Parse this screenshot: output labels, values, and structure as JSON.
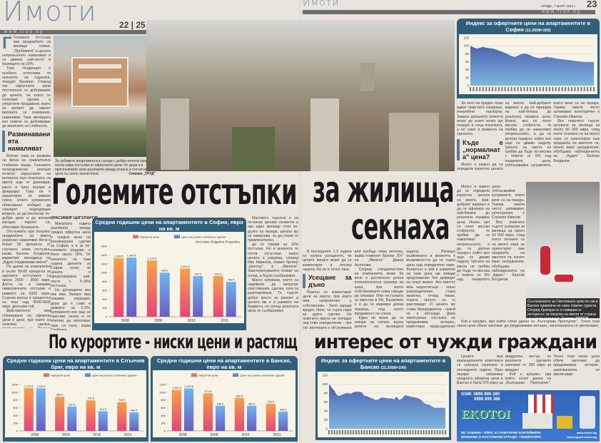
{
  "left_page": {
    "logo": "Имоти",
    "page_numbers": "22 | 25",
    "url": "www.trud.bg",
    "lead_text": [
      "Големите отстъпки при продажбите на жилища секват. „Пробивите\" в цената непрекъснато намаляват и се движат най-често в границите на 10%.",
      "Тази тенденция е особено отчетлива от началото на годината, твърдят брокери. Според тях офертните цени постепенно се доближават до цените, на които се сключват сделки, а упоритите продавачи, които не желаят да свалят високите си очаквания, намаляват. Така жилищата все повече се доближават до реалните си стойности."
    ],
    "subhead_1": "Разминаванията намаляват",
    "text_1": [
      "Всичко това се развива на фона на сравнително стабилен пазар. Големите посреднически агенции отчитат нарастване на интереса към покупката на имоти още от декември, както и през януари и февруари. Това не е характерно за зимния сезон, когато купувачите обикновено избират да спазарят подходящия момент, за да постигнат по-добри цени и да вложат изгодно парите си, обясняват брокерите.",
      "Отстъпките при покупко-продажбите на имоти сериозно намаляват. Вече в близо 30 процента от случаите няма отстъпка, казва Калоян Богданов, маркетинг мениджър на „Адрес Недвижими имоти\".",
      "По данни на компанията в около 50-60 процента от сделките отстъпките са около 2000 - 3000 евро. Доста са и направо символичните отстъпки в рамките на 1000 евро. Съвсем малък е процентът на тези над 4000-5000 евро, допълва той.",
      "Действително има сближаване на офертни цени и цени, при които се сключва сделка, потвърждава и Полина Стойкова, оперативен директор на „Българиан Пропъртис\"."
    ],
    "photo_caption": "За хубавите апартаменти в сгради с добра околна среда почти няма отстъпки от офертните цени. Но дори и в прескъпените зони разликите между искана и постигната цена са силно значителни.",
    "photo_credit": "Снимки „ТРУД\"",
    "byline": "КРАСИМИР ЦИГУЛАРОВ",
    "text_2": [
      "Миналата година разликата между средна офертна цена и средна цена на реализирани сделки за София, а и за по-големите градове, е било около 15%. От началото на тази година данните за София сочат, че цената е предоговаряна най-често с 5-10% отстъпка.",
      "Но договаряне все пак има. Винаги има някаква корекция, дори да е само в рамките на 2-3%. Купувачите все още се чувстват силни и се опитват да използват тази си сила, казва Стойкова.",
      "Масовото търсене е на по-ниски ценови сегменти и ако едно жилище стои по-дълго на пазара, цената му се намалява, за да стане то привлекателно."
    ],
    "text_3": [
      "да се говори за 15% отстъпка. Но в момента те почти отсъстват, които цената е разумна, според Иво Кирилов, главен брокер „Център\" в „Явлена\". Заинтересуваните отиват на оглед, а бързо съобразяват.",
      "Много купувачи, които са надявали да натрупат спестявания, сделка, сега са разочаровани. Те търсят добро място за ремонт и цената им е в рамките на бюджета, но срещу реалната цена те съобразяват."
    ],
    "headline": "Големите отстъпки",
    "headline_2": "По курортите - ниски цени и растящ"
  },
  "right_page": {
    "logo": "Имоти",
    "date": "СРЯДА, 7 МАРТ 2012 г.",
    "page_number": "23",
    "url": "www.trud.bg",
    "headline": "за жилища",
    "headline_cont": "секнаха",
    "headline_2": "интерес от чужди граждани",
    "text_1": [
      "В последните 1-2 години се налага усещането, че цените винаги може да се коментират в посока надолу. Но не е точно така."
    ],
    "subhead_1": "Усещане за дъно",
    "text_2": [
      "Реално се коментират цени на имоти, при които има напрежение у собственика - било заради кредит, било, че търси пари за друга сделка. Но повечето имоти не попадат под това определение - при тях ипотеката е обслужвана или изобщо няма ипотека, казва главният брокер „Юг\" на „Явлена\" Диана Антонова.",
      "Според специалистите на компанията може би вече е достигната долна психологическа граница на цена, при която собствениците няма накъде да смъкват. Или отстъпката се вмества в 5%. Възможно е и да се маркира долна граница, под която продавачът не слиза.",
      "Едва ли може да се говори за натиск върху цените на жилищата надолу. Поскоро възможната в момента е възможността да се търси цена над определено ниво. Въпросът е кой в развитие на тази цена ще извади предложение без дефицит на нещо важно. Ако имотът има недостатъци - лошо разпределение, стара мазилка, течащ таван, хората просто не го разглеждат. И цената му става безпредметна - никой не я обсъжда. Дори евентуална отстъпка не предизвиква интерес, коментира председателят на Националното сдружение „Недвижими имоти\" Иван Велков.",
      "За него на преден план идват теми като саниране, енергийни паспорти. Заедно днешните клиенти искат да знаят колко ще плащат и след покупката, а не само в момента на сделката."
    ],
    "subhead_2": "Къде е „нормалната\" цена?",
    "text_3": [
      "Много е важно да се определи коректно цената на имота. Най-добрият вариант е да се оферира на най-близка до реалната пазарна цена. Иначе, ако се гонят високи стойности, те трябва да се намаляват непрекъснато, а да се догони пазарът, който все още се движи надолу. Цената на имота не трябва да бъде по-висока с повече от 5% над пазарната цена, отблъсквайки купувачите, които вече са на пазара. Такива имоти често залежават, категоричен е Страхил Иванов.",
      "Все повечето търсят купувачи за жилища за около 50 000 евро, след което основно са на много хора се ориентират към продажба на имотите си, когато имат затруднения, обобщава наблюденията на „Адрес\" Калоян Богданов."
    ],
    "photo_caption": "Състезанието за Световната купа по ски в Банско привлича не само повече туристи. Според брокери се е повишил и интересът за покупка на имоти от страна на чужди граждани.",
    "photo_credit": "Снимка РОСЕН КАЛПАЧКИ",
    "text_4": [
      "Цените във ваканционните комплекси се сринаха сериозно в последните години. През януари например средната офертна цена в Банско е била 570 евро за квадратен метър, но реалните сделките започват от 350 евро за квадрат.",
      "Кой е купувач, при който сочат данни на „Българиан Пропъртис\". Точно тези ниски цени обаче започват да предизвикват интерес, запитванията се увеличават."
    ],
    "ad": {
      "gsm_1": "GSM: 0896 896 380",
      "gsm_2": "0896 896 386",
      "brand": "EKOTOI",
      "line_1": "WC КАБИНИ • ОФИС И САНИТАРНИ КОНТЕЙНЕРИ",
      "line_2": "МОБИЛНИ И ПОСТОЯННИ ОГРАДИ • ГЕНЕРАТОРИ",
      "web_1": "www.ekotoi.bg",
      "web_2": "www.ogradi-ekotoi.bg"
    }
  },
  "colors": {
    "chart_header": "#2f5f7a",
    "offer_bar": "#f08a4b",
    "real_bar": "#5b8fd6",
    "index_area": "#4a6fb5",
    "logo_accent": "#a21d3c"
  },
  "chart_data": [
    {
      "type": "bar",
      "title": "Средни годишни цени на апартаментите в София, евро на кв. м",
      "source": "Източник: Bulgarian Properties",
      "categories": [
        "2008",
        "2009",
        "2010",
        "2011"
      ],
      "ylim": [
        0,
        1600
      ],
      "yticks": [
        0,
        200,
        400,
        600,
        800,
        1000,
        1200,
        1400,
        1600
      ],
      "series": [
        {
          "name": "Офертни цени",
          "values": [
            1328,
            1274,
            1094,
            923
          ]
        },
        {
          "name": "Цени на реално сключени сделки",
          "values": [
            1340,
            998,
            920,
            790
          ]
        }
      ]
    },
    {
      "type": "bar",
      "title": "Средни годишни цени на апартаментите в Слънчев бряг, евро на кв. м",
      "categories": [
        "2008",
        "2009",
        "2010",
        "2011"
      ],
      "ylim": [
        0,
        1200
      ],
      "yticks": [
        0,
        200,
        400,
        600,
        800,
        1000,
        1200
      ],
      "series": [
        {
          "name": "Офертни цени",
          "values": [
            1112,
            883,
            791,
            745
          ]
        },
        {
          "name": "Цени на реално сключени сделки",
          "values": [
            1100,
            630,
            510,
            480
          ]
        }
      ]
    },
    {
      "type": "bar",
      "title": "Средни годишни цени на апартаментите в Банско, евро на кв. м",
      "categories": [
        "2008",
        "2009",
        "2010",
        "2011"
      ],
      "ylim": [
        0,
        1200
      ],
      "yticks": [
        0,
        200,
        400,
        600,
        800,
        1000,
        1200
      ],
      "series": [
        {
          "name": "Офертни цени",
          "values": [
            1062,
            972,
            853,
            703
          ]
        },
        {
          "name": "Цени на реално сключени сделки",
          "values": [
            1100,
            650,
            650,
            498
          ]
        }
      ]
    },
    {
      "type": "area",
      "title": "Индекс за офертните цени на апартаментите в София",
      "subtitle": "(11.2008=100)",
      "ylim": [
        0,
        120
      ],
      "yticks": [
        0,
        20,
        40,
        60,
        80,
        100,
        120
      ],
      "values": [
        100,
        96,
        93,
        95,
        97,
        95,
        94,
        93,
        91,
        88,
        85,
        82,
        78,
        74,
        72,
        75,
        79,
        80,
        79,
        76,
        72,
        70,
        69,
        70,
        72,
        71,
        70,
        68,
        67,
        66,
        65,
        64,
        63,
        62,
        61,
        60,
        59,
        59,
        59,
        59
      ]
    },
    {
      "type": "area",
      "title": "Индекс за офертните цени на апартаментите в Банско",
      "subtitle": "(11.2008=100)",
      "ylim": [
        0,
        120
      ],
      "yticks": [
        0,
        20,
        40,
        60,
        80,
        100,
        120
      ],
      "values": [
        100,
        92,
        85,
        75,
        74,
        77,
        79,
        80,
        78,
        82,
        83,
        83,
        82,
        74,
        73,
        70,
        68,
        65,
        65,
        69,
        70,
        69,
        68,
        68,
        66,
        72,
        64,
        68,
        75,
        74,
        72,
        71,
        70,
        68,
        65,
        58,
        55,
        54,
        50,
        47,
        47,
        47,
        47,
        46
      ]
    }
  ]
}
